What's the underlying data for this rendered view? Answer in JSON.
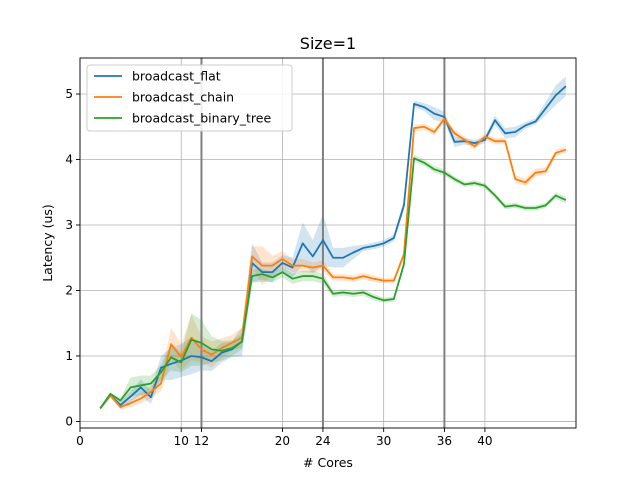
{
  "chart_data": {
    "type": "line",
    "title": "Size=1",
    "xlabel": "# Cores",
    "ylabel": "Latency (us)",
    "xlim": [
      0,
      49
    ],
    "ylim": [
      -0.1,
      5.55
    ],
    "xticks": [
      0,
      10,
      12,
      20,
      24,
      30,
      36,
      40
    ],
    "yticks": [
      0,
      1,
      2,
      3,
      4,
      5
    ],
    "grid": true,
    "legend_position": "top-left",
    "reference_lines_x": [
      12,
      24,
      36
    ],
    "x": [
      2,
      3,
      4,
      5,
      6,
      7,
      8,
      9,
      10,
      11,
      12,
      13,
      14,
      15,
      16,
      17,
      18,
      19,
      20,
      21,
      22,
      23,
      24,
      25,
      26,
      27,
      28,
      29,
      30,
      31,
      32,
      33,
      34,
      35,
      36,
      37,
      38,
      39,
      40,
      41,
      42,
      43,
      44,
      45,
      46,
      47,
      48
    ],
    "series": [
      {
        "name": "broadcast_flat",
        "color": "#1f77b4",
        "values": [
          0.2,
          0.4,
          0.25,
          0.38,
          0.52,
          0.37,
          0.82,
          0.88,
          0.93,
          1.0,
          0.98,
          0.92,
          1.05,
          1.1,
          1.22,
          2.42,
          2.28,
          2.28,
          2.42,
          2.35,
          2.72,
          2.52,
          2.77,
          2.5,
          2.5,
          2.58,
          2.65,
          2.68,
          2.72,
          2.8,
          3.3,
          4.85,
          4.8,
          4.7,
          4.65,
          4.27,
          4.28,
          4.25,
          4.3,
          4.6,
          4.4,
          4.42,
          4.52,
          4.58,
          4.78,
          4.98,
          5.12
        ],
        "band": [
          0.03,
          0.04,
          0.05,
          0.08,
          0.12,
          0.1,
          0.18,
          0.25,
          0.25,
          0.28,
          0.2,
          0.15,
          0.15,
          0.12,
          0.22,
          0.3,
          0.15,
          0.15,
          0.12,
          0.15,
          0.32,
          0.25,
          0.4,
          0.15,
          0.15,
          0.1,
          0.05,
          0.05,
          0.05,
          0.05,
          0.08,
          0.05,
          0.06,
          0.1,
          0.08,
          0.08,
          0.05,
          0.05,
          0.05,
          0.07,
          0.08,
          0.08,
          0.05,
          0.05,
          0.1,
          0.15,
          0.15
        ]
      },
      {
        "name": "broadcast_chain",
        "color": "#ff7f0e",
        "values": [
          0.2,
          0.4,
          0.22,
          0.28,
          0.35,
          0.45,
          0.58,
          1.18,
          0.98,
          1.28,
          1.1,
          1.02,
          1.12,
          1.2,
          1.28,
          2.52,
          2.38,
          2.38,
          2.48,
          2.38,
          2.38,
          2.35,
          2.38,
          2.2,
          2.2,
          2.18,
          2.22,
          2.18,
          2.15,
          2.15,
          2.55,
          4.48,
          4.5,
          4.42,
          4.62,
          4.4,
          4.3,
          4.2,
          4.35,
          4.28,
          4.28,
          3.7,
          3.65,
          3.8,
          3.82,
          4.1,
          4.15
        ],
        "band": [
          0.02,
          0.03,
          0.04,
          0.06,
          0.08,
          0.1,
          0.12,
          0.25,
          0.2,
          0.35,
          0.2,
          0.2,
          0.15,
          0.12,
          0.15,
          0.15,
          0.3,
          0.15,
          0.12,
          0.1,
          0.1,
          0.08,
          0.08,
          0.05,
          0.05,
          0.05,
          0.05,
          0.05,
          0.04,
          0.04,
          0.06,
          0.05,
          0.05,
          0.05,
          0.05,
          0.05,
          0.05,
          0.05,
          0.05,
          0.05,
          0.05,
          0.06,
          0.06,
          0.06,
          0.06,
          0.05,
          0.05
        ]
      },
      {
        "name": "broadcast_binary_tree",
        "color": "#2ca02c",
        "values": [
          0.2,
          0.42,
          0.32,
          0.52,
          0.55,
          0.58,
          0.75,
          0.98,
          0.9,
          1.25,
          1.2,
          1.1,
          1.08,
          1.12,
          1.22,
          2.22,
          2.25,
          2.2,
          2.28,
          2.18,
          2.22,
          2.22,
          2.18,
          1.95,
          1.97,
          1.95,
          1.97,
          1.9,
          1.85,
          1.87,
          2.4,
          4.02,
          3.95,
          3.85,
          3.8,
          3.7,
          3.62,
          3.64,
          3.6,
          3.45,
          3.28,
          3.3,
          3.26,
          3.26,
          3.3,
          3.45,
          3.38
        ],
        "band": [
          0.02,
          0.03,
          0.04,
          0.15,
          0.15,
          0.12,
          0.12,
          0.2,
          0.15,
          0.4,
          0.35,
          0.2,
          0.15,
          0.12,
          0.12,
          0.1,
          0.08,
          0.08,
          0.08,
          0.08,
          0.08,
          0.08,
          0.08,
          0.05,
          0.05,
          0.05,
          0.05,
          0.05,
          0.04,
          0.04,
          0.06,
          0.05,
          0.05,
          0.05,
          0.05,
          0.04,
          0.04,
          0.04,
          0.04,
          0.04,
          0.04,
          0.04,
          0.04,
          0.04,
          0.04,
          0.05,
          0.05
        ]
      }
    ]
  }
}
